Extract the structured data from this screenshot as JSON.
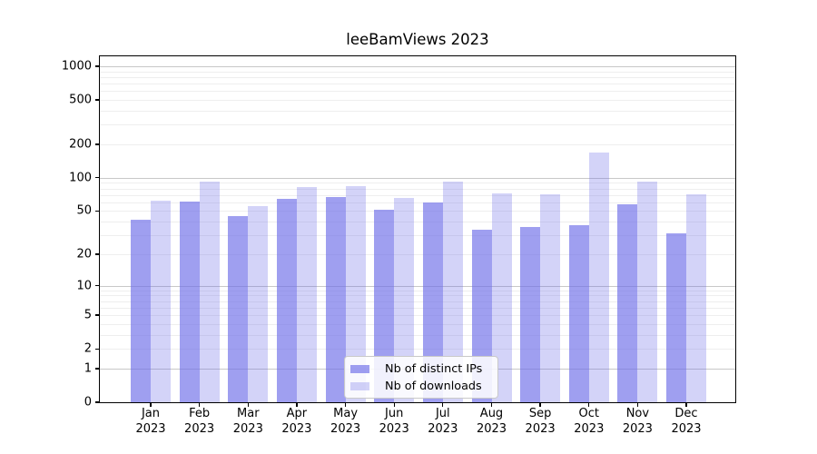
{
  "chart_data": {
    "type": "bar",
    "title": "leeBamViews 2023",
    "categories": [
      "Jan 2023",
      "Feb 2023",
      "Mar 2023",
      "Apr 2023",
      "May 2023",
      "Jun 2023",
      "Jul 2023",
      "Aug 2023",
      "Sep 2023",
      "Oct 2023",
      "Nov 2023",
      "Dec 2023"
    ],
    "series": [
      {
        "name": "Nb of distinct IPs",
        "color": "#6c6ce8",
        "alpha": 0.65,
        "values": [
          42,
          61,
          45,
          64,
          67,
          51,
          60,
          34,
          36,
          37,
          58,
          31
        ]
      },
      {
        "name": "Nb of downloads",
        "color": "#6c6ce8",
        "alpha": 0.3,
        "values": [
          62,
          93,
          55,
          82,
          84,
          66,
          93,
          72,
          71,
          170,
          93,
          71
        ]
      }
    ],
    "yscale": "log1p",
    "yticks": [
      0,
      1,
      2,
      5,
      10,
      20,
      50,
      100,
      200,
      500,
      1000
    ],
    "ylim": [
      0,
      1230
    ],
    "xlabel": "",
    "ylabel": "",
    "grid": "on",
    "legend_position": "lower-center-inside"
  },
  "colors": {
    "bar_dark_flat": "#a1a1f0",
    "bar_light_flat": "#d4d4f9",
    "major_grid": "#c8c8c8",
    "minor_grid": "#eeeeee",
    "spine": "#000000",
    "background": "#ffffff"
  }
}
